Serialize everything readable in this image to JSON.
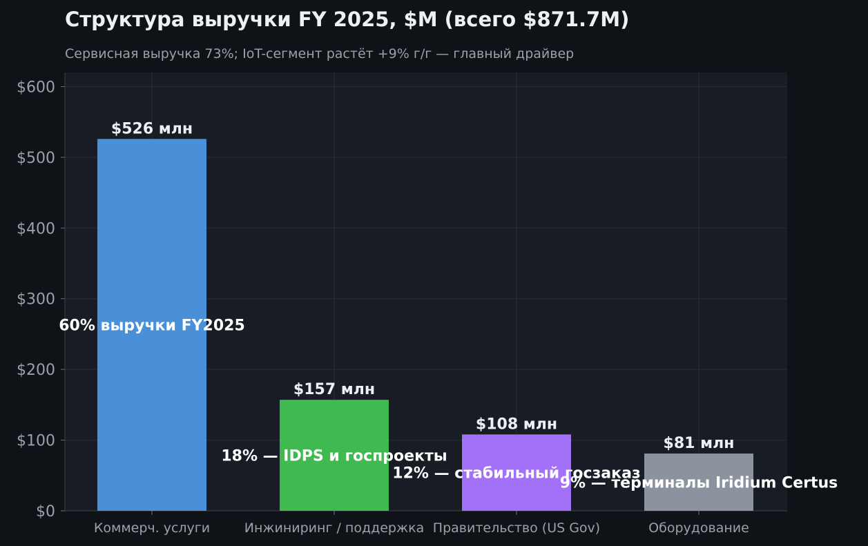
{
  "chart_data": {
    "type": "bar",
    "title": "Структура выручки FY 2025, $M (всего $871.7M)",
    "subtitle": "Сервисная выручка 73%; IoT-сегмент растёт +9% г/г — главный драйвер",
    "categories": [
      "Коммерч. услуги",
      "Инжиниринг / поддержка",
      "Правительство (US Gov)",
      "Оборудование"
    ],
    "values": [
      526,
      157,
      108,
      81
    ],
    "value_labels": [
      "$526 млн",
      "$157 млн",
      "$108 млн",
      "$81 млн"
    ],
    "annotations": [
      "60% выручки FY2025",
      "18% — IDPS и госпроекты",
      "12% — стабильный госзаказ",
      "9% — терминалы Iridium Certus"
    ],
    "colors": [
      "#4a90d9",
      "#3fb950",
      "#a371f7",
      "#8b949e"
    ],
    "ylim": [
      0,
      620
    ],
    "yticks": [
      0,
      100,
      200,
      300,
      400,
      500,
      600
    ],
    "ytick_labels": [
      "$0",
      "$100",
      "$200",
      "$300",
      "$400",
      "$500",
      "$600"
    ],
    "xlabel": "",
    "ylabel": "",
    "grid": true,
    "legend": "none"
  }
}
